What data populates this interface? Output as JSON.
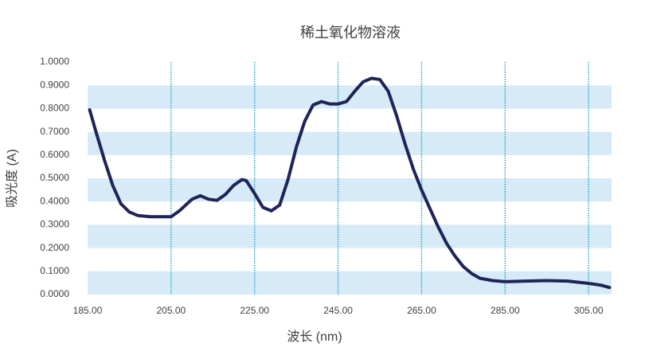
{
  "chart_data": {
    "type": "line",
    "title": "稀土氧化物溶液",
    "x_label": "波长 (nm)",
    "y_label": "吸光度 (A)",
    "x": [
      185.5,
      187,
      189,
      191,
      193,
      195,
      197,
      200,
      205,
      207,
      210,
      212,
      214,
      216,
      218,
      220,
      222,
      223,
      225,
      227,
      229,
      231,
      233,
      235,
      237,
      239,
      241,
      243,
      245,
      247,
      249,
      251,
      253,
      255,
      257,
      259,
      261,
      263,
      265,
      267,
      269,
      271,
      273,
      275,
      277,
      279,
      282,
      285,
      290,
      295,
      300,
      305,
      308,
      310
    ],
    "series": [
      {
        "name": "吸光度",
        "color": "#1f2458",
        "values": [
          0.795,
          0.7,
          0.58,
          0.47,
          0.39,
          0.355,
          0.34,
          0.335,
          0.335,
          0.36,
          0.41,
          0.425,
          0.41,
          0.405,
          0.43,
          0.47,
          0.495,
          0.49,
          0.435,
          0.375,
          0.36,
          0.385,
          0.495,
          0.635,
          0.745,
          0.815,
          0.83,
          0.82,
          0.82,
          0.83,
          0.875,
          0.915,
          0.93,
          0.925,
          0.875,
          0.77,
          0.65,
          0.54,
          0.45,
          0.37,
          0.29,
          0.22,
          0.165,
          0.12,
          0.09,
          0.07,
          0.06,
          0.055,
          0.058,
          0.06,
          0.058,
          0.048,
          0.04,
          0.03
        ]
      }
    ],
    "xlim": [
      185,
      310.5
    ],
    "xticks": [
      {
        "value": 185,
        "label": "185.00"
      },
      {
        "value": 205,
        "label": "205.00"
      },
      {
        "value": 225,
        "label": "225.00"
      },
      {
        "value": 245,
        "label": "245.00"
      },
      {
        "value": 265,
        "label": "265.00"
      },
      {
        "value": 285,
        "label": "285.00"
      },
      {
        "value": 305,
        "label": "305.00"
      }
    ],
    "ylim": [
      0,
      1
    ],
    "yticks": [
      {
        "value": 0,
        "label": "0.0000"
      },
      {
        "value": 0.1,
        "label": "0.1000"
      },
      {
        "value": 0.2,
        "label": "0.2000"
      },
      {
        "value": 0.3,
        "label": "0.3000"
      },
      {
        "value": 0.4,
        "label": "0.4000"
      },
      {
        "value": 0.5,
        "label": "0.5000"
      },
      {
        "value": 0.6,
        "label": "0.6000"
      },
      {
        "value": 0.7,
        "label": "0.7000"
      },
      {
        "value": 0.8,
        "label": "0.8000"
      },
      {
        "value": 0.9,
        "label": "0.9000"
      },
      {
        "value": 1,
        "label": "1.0000"
      }
    ],
    "grid": true,
    "band_color": "#d6ebf7",
    "grid_color": "#2aa7c6"
  }
}
